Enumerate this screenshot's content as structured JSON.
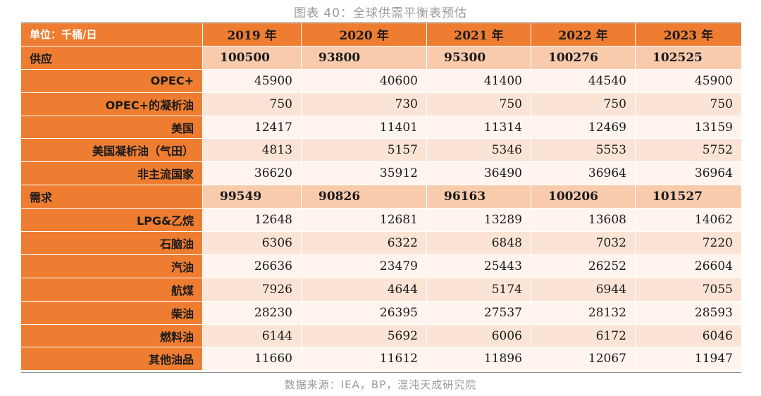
{
  "title": "图表 40：全球供需平衡表预估",
  "table": {
    "unit_label": "单位：千桶/日",
    "years": [
      "2019 年",
      "2020 年",
      "2021 年",
      "2022 年",
      "2023 年"
    ],
    "rows": [
      {
        "label": "供应",
        "section": true,
        "values": [
          "100500",
          "93800",
          "95300",
          "100276",
          "102525"
        ]
      },
      {
        "label": "OPEC+",
        "section": false,
        "values": [
          "45900",
          "40600",
          "41400",
          "44540",
          "45900"
        ]
      },
      {
        "label": "OPEC+的凝析油",
        "section": false,
        "values": [
          "750",
          "730",
          "750",
          "750",
          "750"
        ]
      },
      {
        "label": "美国",
        "section": false,
        "values": [
          "12417",
          "11401",
          "11314",
          "12469",
          "13159"
        ]
      },
      {
        "label": "美国凝析油（气田）",
        "section": false,
        "values": [
          "4813",
          "5157",
          "5346",
          "5553",
          "5752"
        ]
      },
      {
        "label": "非主流国家",
        "section": false,
        "values": [
          "36620",
          "35912",
          "36490",
          "36964",
          "36964"
        ]
      },
      {
        "label": "需求",
        "section": true,
        "values": [
          "99549",
          "90826",
          "96163",
          "100206",
          "101527"
        ]
      },
      {
        "label": "LPG&乙烷",
        "section": false,
        "values": [
          "12648",
          "12681",
          "13289",
          "13608",
          "14062"
        ]
      },
      {
        "label": "石脑油",
        "section": false,
        "values": [
          "6306",
          "6322",
          "6848",
          "7032",
          "7220"
        ]
      },
      {
        "label": "汽油",
        "section": false,
        "values": [
          "26636",
          "23479",
          "25443",
          "26252",
          "26604"
        ]
      },
      {
        "label": "航煤",
        "section": false,
        "values": [
          "7926",
          "4644",
          "5174",
          "6944",
          "7055"
        ]
      },
      {
        "label": "柴油",
        "section": false,
        "values": [
          "28230",
          "26395",
          "27537",
          "28132",
          "28593"
        ]
      },
      {
        "label": "燃料油",
        "section": false,
        "values": [
          "6144",
          "5692",
          "6006",
          "6172",
          "6046"
        ]
      },
      {
        "label": "其他油品",
        "section": false,
        "values": [
          "11660",
          "11612",
          "11896",
          "12067",
          "11947"
        ]
      }
    ]
  },
  "source": "数据来源：IEA，BP，混沌天成研究院",
  "colors": {
    "header_orange": "#ee7d31",
    "section_peach": "#f8cbad",
    "row_light": "#fbe4d5",
    "row_white": "#fff4ee"
  }
}
